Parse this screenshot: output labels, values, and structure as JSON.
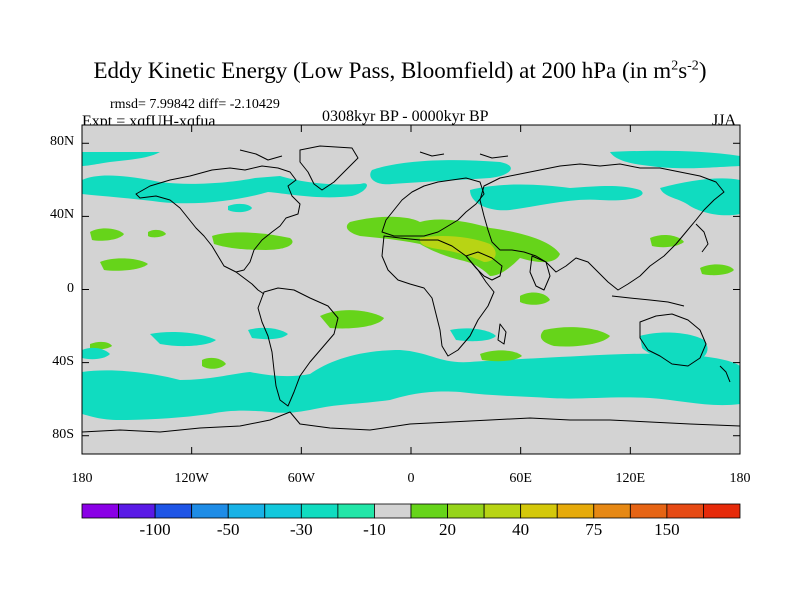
{
  "title": {
    "text": "Eddy Kinetic Energy (Low Pass, Bloomfield) at 200 hPa (in m",
    "sup1": "2",
    "mid": "s",
    "sup2": "-2",
    "end": ")"
  },
  "stats": {
    "rmsd": "rmsd= 7.99842 diff= -2.10429",
    "expt": "Expt = xqfUH-xqfua"
  },
  "period": "0308kyr BP - 0000kyr BP",
  "season": "JJA",
  "map": {
    "lon_range": [
      -180,
      180
    ],
    "lat_range": [
      -90,
      90
    ],
    "background_color": "#d3d3d3",
    "lat_ticks": [
      {
        "value": 80,
        "label": "80N"
      },
      {
        "value": 40,
        "label": "40N"
      },
      {
        "value": 0,
        "label": "0"
      },
      {
        "value": -40,
        "label": "40S"
      },
      {
        "value": -80,
        "label": "80S"
      }
    ],
    "lon_ticks": [
      {
        "value": -180,
        "label": "180"
      },
      {
        "value": -120,
        "label": "120W"
      },
      {
        "value": -60,
        "label": "60W"
      },
      {
        "value": 0,
        "label": "0"
      },
      {
        "value": 60,
        "label": "60E"
      },
      {
        "value": 120,
        "label": "120E"
      },
      {
        "value": 180,
        "label": "180"
      }
    ]
  },
  "colorbar": {
    "colors": [
      "#8a00e6",
      "#5a1ae6",
      "#1e55e6",
      "#1e8ce6",
      "#18b2e6",
      "#12c8dc",
      "#10dcc0",
      "#22e6a8",
      "#d3d3d3",
      "#66d41a",
      "#96d41a",
      "#b8d414",
      "#d4c80a",
      "#e6aa0a",
      "#e68814",
      "#e66414",
      "#e64a14",
      "#e62a0a"
    ],
    "labels": [
      {
        "index": 2,
        "text": "-100"
      },
      {
        "index": 4,
        "text": "-50"
      },
      {
        "index": 6,
        "text": "-30"
      },
      {
        "index": 8,
        "text": "-10"
      },
      {
        "index": 10,
        "text": "20"
      },
      {
        "index": 12,
        "text": "40"
      },
      {
        "index": 14,
        "text": "75"
      },
      {
        "index": 16,
        "text": "150"
      }
    ]
  }
}
